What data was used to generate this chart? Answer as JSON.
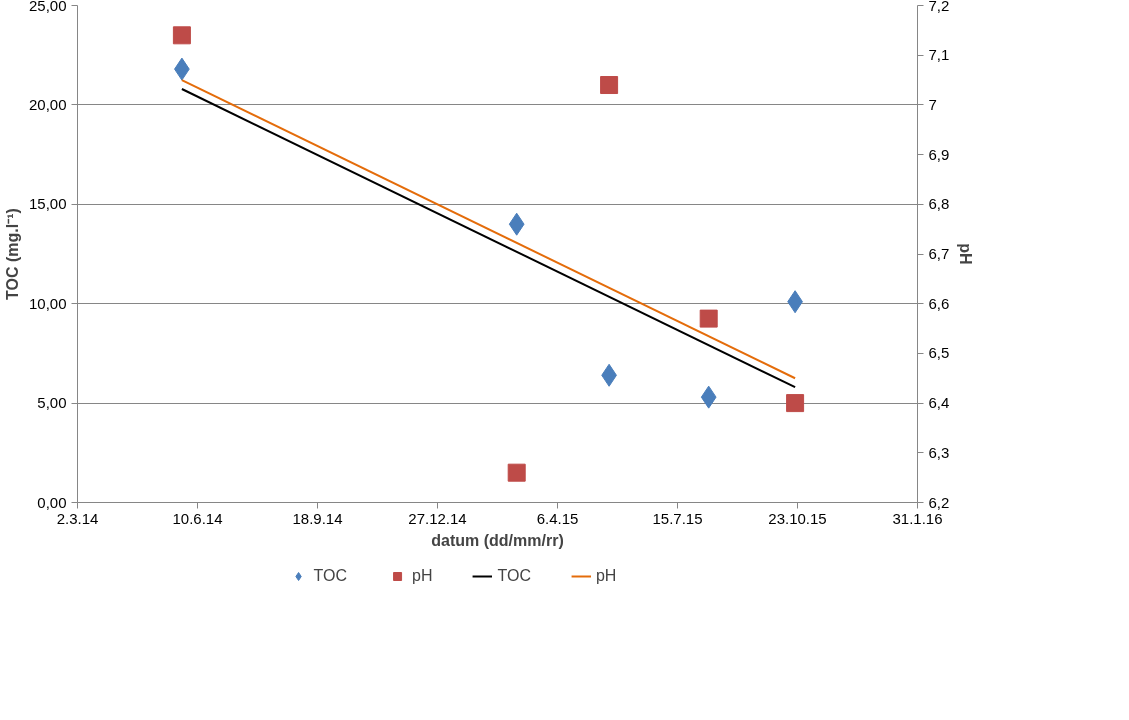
{
  "chart_data": {
    "type": "scatter",
    "xlabel": "datum (dd/mm/rr)",
    "ylabel": "TOC (mg.l⁻¹)",
    "y2label": "pH",
    "xlim": [
      "2014-03-02",
      "2016-01-31"
    ],
    "xticks": [
      {
        "value": "2014-03-02",
        "label": "2.3.14"
      },
      {
        "value": "2014-06-10",
        "label": "10.6.14"
      },
      {
        "value": "2014-09-18",
        "label": "18.9.14"
      },
      {
        "value": "2014-12-27",
        "label": "27.12.14"
      },
      {
        "value": "2015-04-06",
        "label": "6.4.15"
      },
      {
        "value": "2015-07-15",
        "label": "15.7.15"
      },
      {
        "value": "2015-10-23",
        "label": "23.10.15"
      },
      {
        "value": "2016-01-31",
        "label": "31.1.16"
      }
    ],
    "ylim": [
      0,
      25
    ],
    "yticks": [
      {
        "value": 0,
        "label": "0,00"
      },
      {
        "value": 5,
        "label": "5,00"
      },
      {
        "value": 10,
        "label": "10,00"
      },
      {
        "value": 15,
        "label": "15,00"
      },
      {
        "value": 20,
        "label": "20,00"
      },
      {
        "value": 25,
        "label": "25,00"
      }
    ],
    "y2lim": [
      6.2,
      7.2
    ],
    "y2ticks": [
      {
        "value": 6.2,
        "label": "6,2"
      },
      {
        "value": 6.3,
        "label": "6,3"
      },
      {
        "value": 6.4,
        "label": "6,4"
      },
      {
        "value": 6.5,
        "label": "6,5"
      },
      {
        "value": 6.6,
        "label": "6,6"
      },
      {
        "value": 6.7,
        "label": "6,7"
      },
      {
        "value": 6.8,
        "label": "6,8"
      },
      {
        "value": 6.9,
        "label": "6,9"
      },
      {
        "value": 7,
        "label": "7"
      },
      {
        "value": 7.1,
        "label": "7,1"
      },
      {
        "value": 7.2,
        "label": "7,2"
      }
    ],
    "grid": "y",
    "legend": "bottom",
    "series": [
      {
        "name": "TOC",
        "marker": "diamond",
        "color": "#4a7ebb",
        "x": [
          "2014-05-28",
          "2015-03-03",
          "2015-05-19",
          "2015-08-10",
          "2015-10-21"
        ],
        "values": [
          21.8,
          14.0,
          6.4,
          5.3,
          10.1
        ]
      },
      {
        "name": "pH",
        "marker": "square",
        "color": "#be4b48",
        "axis": "y2",
        "x": [
          "2014-05-28",
          "2015-03-03",
          "2015-05-19",
          "2015-08-10",
          "2015-10-21"
        ],
        "values": [
          7.14,
          6.26,
          7.04,
          6.57,
          6.4
        ]
      },
      {
        "name": "TOC",
        "type": "line",
        "color": "#000000",
        "x": [
          "2014-05-28",
          "2015-10-21"
        ],
        "values": [
          20.8,
          5.8
        ]
      },
      {
        "name": "pH",
        "type": "line",
        "color": "#e46c0a",
        "axis": "y2",
        "x": [
          "2014-05-28",
          "2015-10-21"
        ],
        "values": [
          7.05,
          6.45
        ]
      }
    ]
  }
}
